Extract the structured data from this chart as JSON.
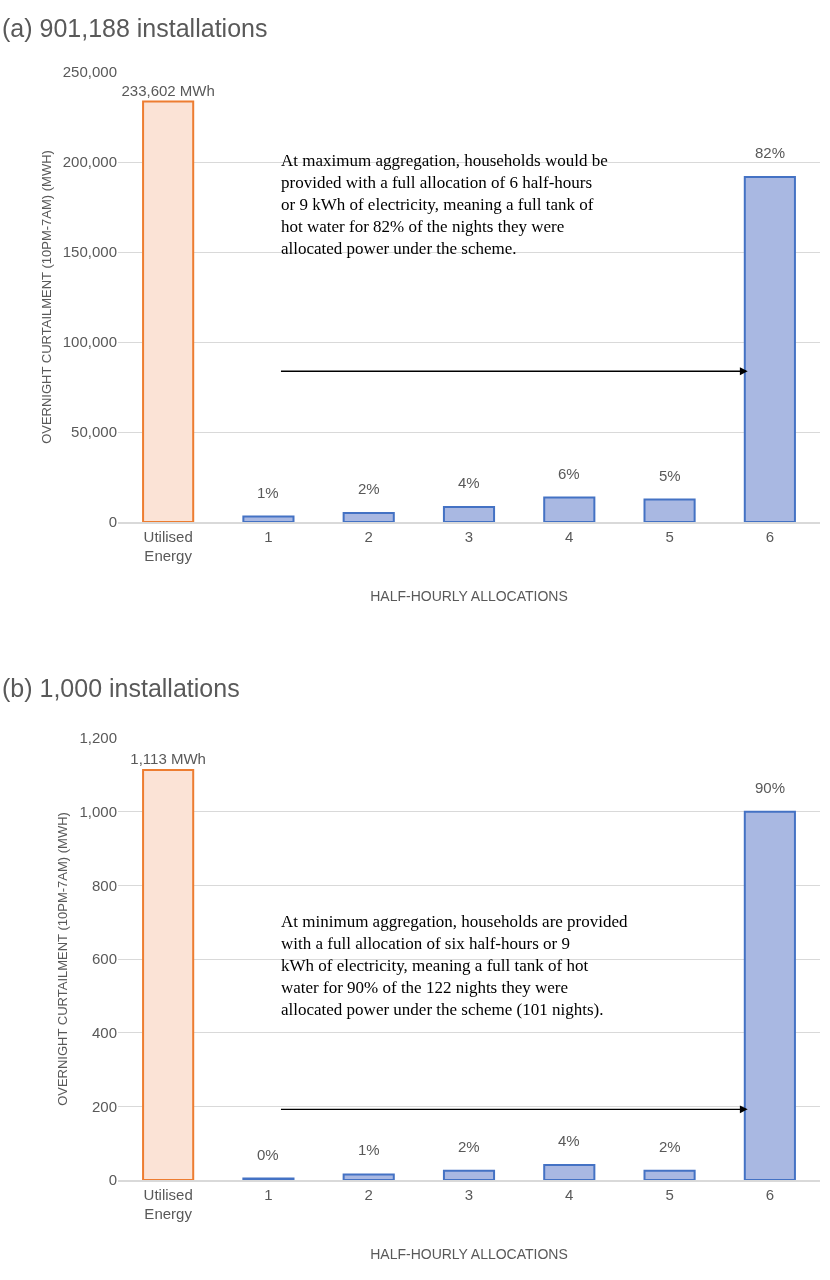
{
  "chart_data": [
    {
      "type": "bar",
      "title": "(a) 901,188 installations",
      "xlabel": "HALF-HOURLY ALLOCATIONS",
      "ylabel": "OVERNIGHT CURTAILMENT (10PM-7AM) (MWH)",
      "categories": [
        "Utilised Energy",
        "1",
        "2",
        "3",
        "4",
        "5",
        "6"
      ],
      "values": [
        233602,
        3000,
        5000,
        8300,
        13600,
        12500,
        191700
      ],
      "value_labels": [
        "233,602 MWh",
        null,
        null,
        null,
        null,
        null,
        null
      ],
      "colors": [
        "#fbe3d6",
        "#a9b8e2",
        "#a9b8e2",
        "#a9b8e2",
        "#a9b8e2",
        "#a9b8e2",
        "#a9b8e2"
      ],
      "ylim": [
        0,
        250000
      ],
      "yticks": [
        {
          "value": 0,
          "label": "0"
        },
        {
          "value": 50000,
          "label": "50,000"
        },
        {
          "value": 100000,
          "label": "100,000"
        },
        {
          "value": 150000,
          "label": "150,000"
        },
        {
          "value": 200000,
          "label": "200,000"
        },
        {
          "value": 250000,
          "label": "250,000"
        }
      ],
      "grid": "y",
      "annotations": [
        {
          "text": "1%",
          "x": "1",
          "y": 3000
        },
        {
          "text": "2%",
          "x": "2",
          "y": 5000
        },
        {
          "text": "4%",
          "x": "3",
          "y": 8300
        },
        {
          "text": "6%",
          "x": "4",
          "y": 13600
        },
        {
          "text": "5%",
          "x": "5",
          "y": 12500
        },
        {
          "text": "82%",
          "x": "6",
          "y": 191700
        },
        "At maximum aggregation, households would be provided with a full allocation of 6 half-hours or 9 kWh of electricity, meaning a full tank of hot water for 82% of the nights they were allocated power under the scheme."
      ]
    },
    {
      "type": "bar",
      "title": "(b) 1,000 installations",
      "xlabel": "HALF-HOURLY ALLOCATIONS",
      "ylabel": "OVERNIGHT CURTAILMENT (10PM-7AM) (MWH)",
      "categories": [
        "Utilised Energy",
        "1",
        "2",
        "3",
        "4",
        "5",
        "6"
      ],
      "values": [
        1113,
        4,
        15,
        25,
        41,
        25,
        1000
      ],
      "value_labels": [
        "1,113 MWh",
        null,
        null,
        null,
        null,
        null,
        null
      ],
      "colors": [
        "#fbe3d6",
        "#a9b8e2",
        "#a9b8e2",
        "#a9b8e2",
        "#a9b8e2",
        "#a9b8e2",
        "#a9b8e2"
      ],
      "ylim": [
        0,
        1200
      ],
      "yticks": [
        {
          "value": 0,
          "label": "0"
        },
        {
          "value": 200,
          "label": "200"
        },
        {
          "value": 400,
          "label": "400"
        },
        {
          "value": 600,
          "label": "600"
        },
        {
          "value": 800,
          "label": "800"
        },
        {
          "value": 1000,
          "label": "1,000"
        },
        {
          "value": 1200,
          "label": "1,200"
        }
      ],
      "grid": "y",
      "annotations": [
        {
          "text": "0%",
          "x": "1",
          "y": 4
        },
        {
          "text": "1%",
          "x": "2",
          "y": 15
        },
        {
          "text": "2%",
          "x": "3",
          "y": 25
        },
        {
          "text": "4%",
          "x": "4",
          "y": 41
        },
        {
          "text": "2%",
          "x": "5",
          "y": 25
        },
        {
          "text": "90%",
          "x": "6",
          "y": 1000
        },
        "At minimum aggregation, households are provided with a full allocation of six half-hours or 9 kWh of electricity, meaning a full tank of hot water for 90% of the 122 nights they were allocated power under the scheme (101 nights)."
      ]
    }
  ]
}
